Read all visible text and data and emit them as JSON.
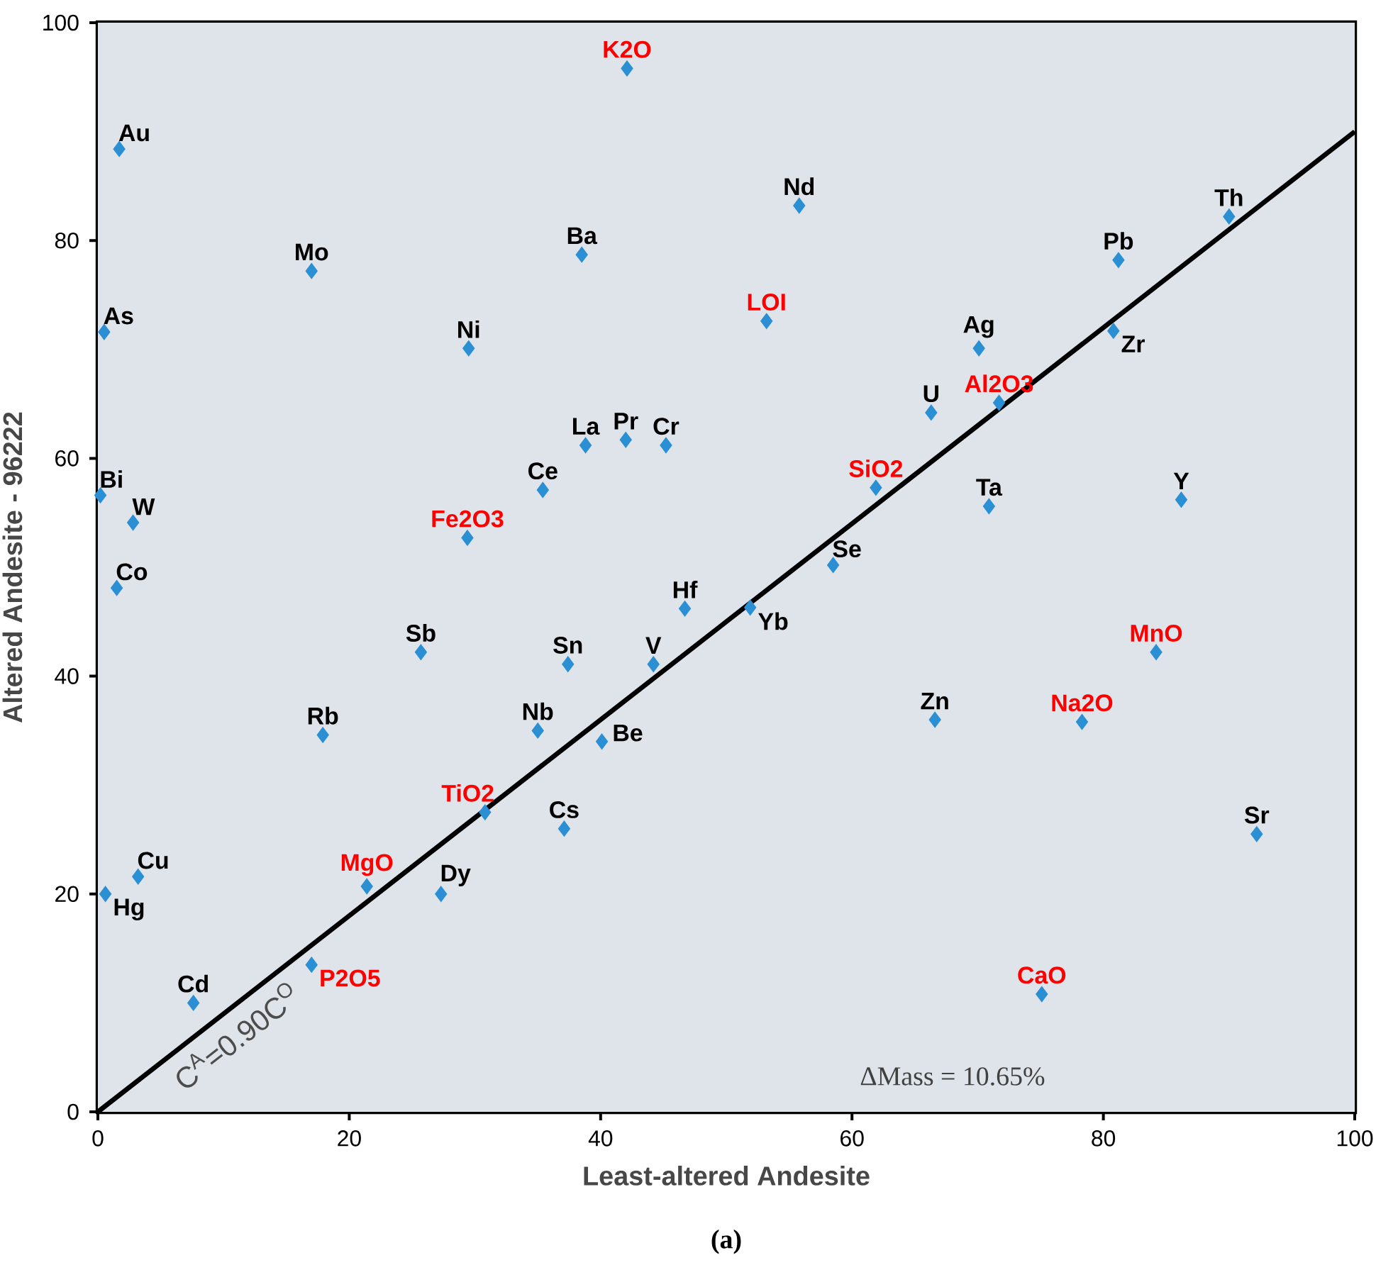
{
  "chart_data": {
    "type": "scatter",
    "xlabel": "Least-altered Andesite",
    "ylabel": "Altered Andesite - 96222",
    "xlim": [
      0,
      100
    ],
    "ylim": [
      0,
      100
    ],
    "xticks": [
      0,
      20,
      40,
      60,
      80,
      100
    ],
    "yticks": [
      0,
      20,
      40,
      60,
      80,
      100
    ],
    "marker": "diamond",
    "series": [
      {
        "color": "#2b8fd4",
        "x": [
          1.7,
          55.8,
          90.0,
          81.2,
          38.5,
          17.0,
          0.5,
          29.5,
          70.1,
          80.8,
          66.3,
          38.8,
          42.0,
          45.2,
          35.4,
          0.2,
          70.9,
          86.2,
          2.8,
          58.5,
          1.5,
          46.7,
          51.9,
          25.7,
          37.4,
          44.2,
          66.6,
          17.9,
          35.0,
          40.1,
          37.1,
          92.2,
          3.2,
          27.3,
          0.6,
          7.6
        ],
        "values": [
          88.4,
          83.2,
          82.2,
          78.2,
          78.7,
          77.2,
          71.6,
          70.1,
          70.1,
          71.7,
          64.2,
          61.2,
          61.7,
          61.2,
          57.1,
          56.6,
          55.6,
          56.2,
          54.1,
          50.2,
          48.1,
          46.2,
          46.3,
          42.2,
          41.1,
          41.1,
          36.0,
          34.6,
          35.0,
          34.0,
          26.0,
          25.5,
          21.6,
          20.0,
          20.0,
          10.0
        ],
        "value_labels": [
          "Au",
          "Nd",
          "Th",
          "Pb",
          "Ba",
          "Mo",
          "As",
          "Ni",
          "Ag",
          "Zr",
          "U",
          "La",
          "Pr",
          "Cr",
          "Ce",
          "Bi",
          "Ta",
          "Y",
          "W",
          "Se",
          "Co",
          "Hf",
          "Yb",
          "Sb",
          "Sn",
          "V",
          "Zn",
          "Rb",
          "Nb",
          "Be",
          "Cs",
          "Sr",
          "Cu",
          "Dy",
          "Hg",
          "Cd"
        ]
      },
      {
        "color": "#2b8fd4",
        "x": [
          42.1,
          53.2,
          71.7,
          61.9,
          29.4,
          84.2,
          78.3,
          30.8,
          21.4,
          17.0,
          75.1
        ],
        "values": [
          95.8,
          72.6,
          65.1,
          57.3,
          52.7,
          42.2,
          35.8,
          27.5,
          20.7,
          13.5,
          10.8
        ],
        "value_labels": [
          "K2O",
          "LOI",
          "Al2O3",
          "SiO2",
          "Fe2O3",
          "MnO",
          "Na2O",
          "TiO2",
          "MgO",
          "P2O5",
          "CaO"
        ]
      },
      {
        "type": "line",
        "color": "#000000",
        "marker": "none",
        "line_style": "solid",
        "x": [
          0,
          100
        ],
        "values": [
          0,
          90
        ]
      }
    ],
    "annotations": [
      "C$^{A}$=0.90C$^{O}$",
      "ΔMass = 10.65%",
      "(a)"
    ]
  }
}
